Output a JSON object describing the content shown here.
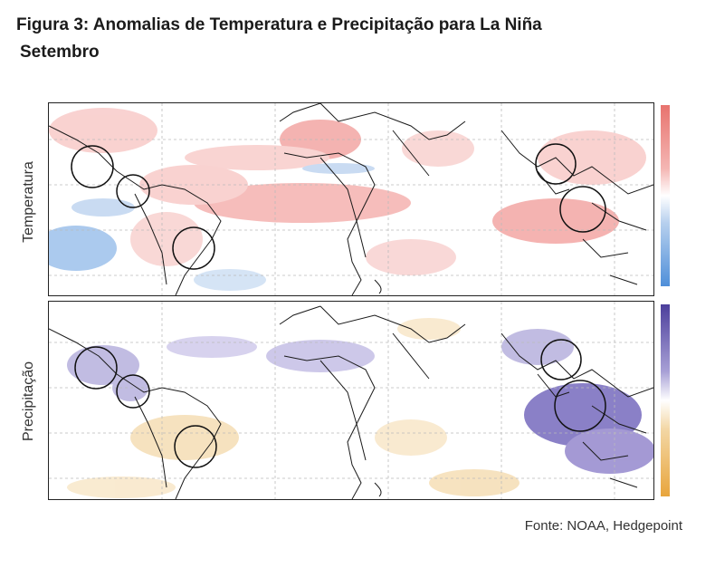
{
  "figure": {
    "title": "Figura 3: Anomalias de Temperatura e Precipitação para La Niña",
    "subtitle": "Setembro",
    "source": "Fonte: NOAA, Hedgepoint"
  },
  "panels": [
    {
      "id": "temperature",
      "label": "Temperatura",
      "colorbar_colors": [
        "#e8736e",
        "#f4b6b3",
        "#ffffff",
        "#b7d0ee",
        "#4f8fd9"
      ]
    },
    {
      "id": "precipitation",
      "label": "Precipitação",
      "colorbar_colors": [
        "#4c3f9c",
        "#a8a0d6",
        "#ffffff",
        "#f3d7a5",
        "#e8a53c"
      ]
    }
  ],
  "colors": {
    "warm": "#f4a3a1",
    "cool": "#8fb8e8",
    "wet": "#7e6fc3",
    "dry": "#f1c98a"
  }
}
